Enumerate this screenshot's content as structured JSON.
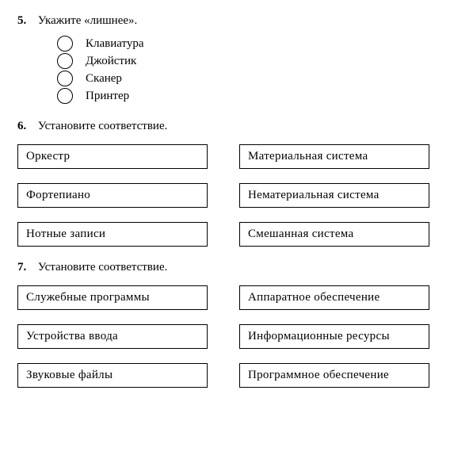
{
  "q5": {
    "number": "5.",
    "prompt": "Укажите «лишнее».",
    "options": [
      "Клавиатура",
      "Джойстик",
      "Сканер",
      "Принтер"
    ]
  },
  "q6": {
    "number": "6.",
    "prompt": "Установите соответствие.",
    "left": [
      "Оркестр",
      "Фортепиано",
      "Нотные записи"
    ],
    "right": [
      "Материальная система",
      "Нематериальная система",
      "Смешанная система"
    ]
  },
  "q7": {
    "number": "7.",
    "prompt": "Установите соответствие.",
    "left": [
      "Служебные программы",
      "Устройства ввода",
      "Звуковые файлы"
    ],
    "right": [
      "Аппаратное обеспечение",
      "Информационные ресурсы",
      "Программное обеспечение"
    ]
  }
}
